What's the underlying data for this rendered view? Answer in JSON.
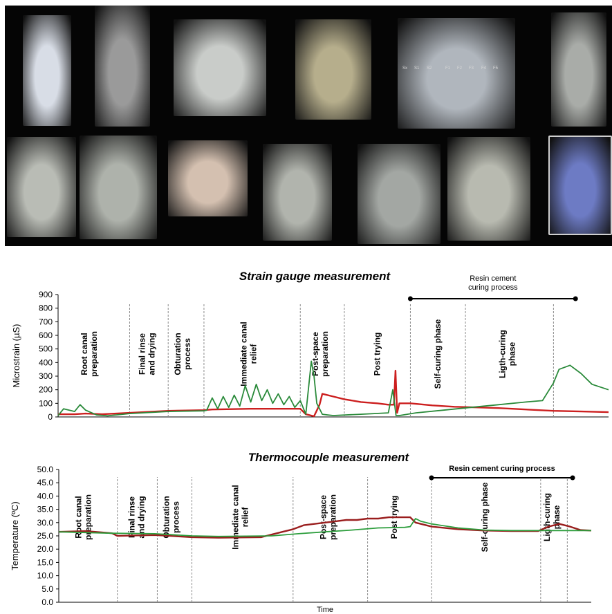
{
  "figure": {
    "photos": [
      {
        "name": "photo-root-specimen-block",
        "color": "#d8dde6"
      },
      {
        "name": "photo-strain-gauge-sensor",
        "color": "#9a9a9a"
      },
      {
        "name": "photo-gauge-wire-connection",
        "color": "#c9ccc9"
      },
      {
        "name": "photo-gauge-bonding",
        "color": "#b6ae8c"
      },
      {
        "name": "photo-rotary-endodontic-files",
        "color": "#b0b6bd"
      },
      {
        "name": "photo-handpiece-on-specimen",
        "color": "#a9aca8"
      },
      {
        "name": "photo-paper-points",
        "color": "#b9bcb5"
      },
      {
        "name": "photo-gutta-percha-cones",
        "color": "#aeb2ab"
      },
      {
        "name": "photo-flame-heating",
        "color": "#d4c0b0"
      },
      {
        "name": "photo-canal-relief",
        "color": "#b1b4ad"
      },
      {
        "name": "photo-post-space-drill",
        "color": "#a3a7a3"
      },
      {
        "name": "photo-post-trying",
        "color": "#b8bab0"
      },
      {
        "name": "photo-light-curing-unit",
        "color": "#6d7bc4"
      }
    ],
    "file_labels": [
      "Sx",
      "S1",
      "S2",
      "F1",
      "F2",
      "F3",
      "F4",
      "F5"
    ]
  },
  "chart_data": [
    {
      "type": "line",
      "title": "Strain gauge measurement",
      "xlabel": "",
      "ylabel": "Microstrain (µS)",
      "ylim": [
        0,
        900
      ],
      "y_ticks": [
        "0",
        "100",
        "200",
        "300",
        "400",
        "500",
        "600",
        "700",
        "800",
        "900"
      ],
      "x_range": [
        0,
        100
      ],
      "phase_boundaries": [
        13,
        20,
        26.5,
        44,
        52,
        64,
        74,
        90
      ],
      "phases": [
        {
          "label": "Root canal preparation",
          "x": 6
        },
        {
          "label": "Final rinse and drying",
          "x": 16.5
        },
        {
          "label": "Obturation process",
          "x": 23
        },
        {
          "label": "Immediate canal relief",
          "x": 35
        },
        {
          "label": "Post-space preparation",
          "x": 48
        },
        {
          "label": "Post trying",
          "x": 58
        },
        {
          "label": "Self-curing phase",
          "x": 69
        },
        {
          "label": "Ligth-curing phase",
          "x": 82
        }
      ],
      "bracket": {
        "label": "Resin cement curing process",
        "x_start": 64,
        "x_end": 94
      },
      "series": [
        {
          "color": "#cc1f1f",
          "x": [
            0,
            3,
            5,
            8,
            13,
            20,
            26.5,
            28,
            35,
            44,
            45,
            46.5,
            47.5,
            48,
            50,
            52,
            55,
            58,
            60,
            61,
            61.3,
            61.6,
            62,
            64,
            68,
            72,
            76,
            80,
            85,
            90,
            95,
            100
          ],
          "y": [
            20,
            20,
            25,
            20,
            30,
            45,
            50,
            55,
            60,
            60,
            20,
            5,
            90,
            170,
            150,
            130,
            110,
            100,
            90,
            90,
            340,
            30,
            100,
            100,
            85,
            75,
            70,
            65,
            55,
            45,
            40,
            35
          ]
        },
        {
          "color": "#2a8a3a",
          "x": [
            0,
            1,
            3,
            4,
            5,
            7,
            9,
            13,
            20,
            26.5,
            27,
            28,
            29,
            30,
            31,
            32,
            33,
            34,
            35,
            36,
            37,
            38,
            39,
            40,
            41,
            42,
            43,
            44,
            45,
            46,
            46.5,
            47,
            48,
            49,
            50,
            55,
            60,
            60.8,
            61.4,
            62,
            65,
            70,
            75,
            80,
            85,
            88,
            90,
            91,
            93,
            95,
            97,
            100
          ],
          "y": [
            10,
            60,
            40,
            90,
            50,
            15,
            8,
            25,
            40,
            45,
            50,
            140,
            60,
            150,
            70,
            160,
            80,
            230,
            110,
            240,
            120,
            200,
            100,
            170,
            90,
            150,
            70,
            120,
            20,
            410,
            300,
            100,
            20,
            15,
            10,
            20,
            30,
            200,
            10,
            10,
            30,
            50,
            70,
            90,
            110,
            120,
            250,
            350,
            380,
            320,
            240,
            200
          ]
        }
      ]
    },
    {
      "type": "line",
      "title": "Thermocouple measurement",
      "xlabel": "Time",
      "ylabel": "Temperature (ºC)",
      "ylim": [
        0,
        50
      ],
      "y_ticks": [
        "0.0",
        "5.0",
        "10.0",
        "15.0",
        "20.0",
        "25.0",
        "30.0",
        "35.0",
        "40.0",
        "45.0",
        "50.0"
      ],
      "x_range": [
        0,
        100
      ],
      "phase_boundaries": [
        11,
        18.5,
        25,
        44,
        58,
        70,
        90.5,
        95.5
      ],
      "phases": [
        {
          "label": "Root canal preparation",
          "x": 5
        },
        {
          "label": "Final rinse and drying",
          "x": 15
        },
        {
          "label": "Obturation process",
          "x": 21.5
        },
        {
          "label": "Immediate canal relief",
          "x": 34.5
        },
        {
          "label": "Post-space preparation",
          "x": 51
        },
        {
          "label": "Post trying",
          "x": 63
        },
        {
          "label": "Self-curing phase",
          "x": 80
        },
        {
          "label": "Ligth-curing phase",
          "x": 93
        }
      ],
      "bracket": {
        "label": "Resin cement curing process",
        "x_start": 70,
        "x_end": 96.5
      },
      "series": [
        {
          "color": "#9a1e1e",
          "x": [
            0,
            5,
            10,
            11,
            18,
            25,
            30,
            38,
            40,
            42,
            44,
            46,
            48,
            50,
            52,
            54,
            56,
            58,
            60,
            62,
            64,
            66,
            67,
            68,
            70,
            75,
            80,
            85,
            90,
            92,
            94,
            96,
            98,
            100
          ],
          "y": [
            26.5,
            26.8,
            26,
            25,
            25.3,
            24.5,
            24.3,
            24.5,
            25.5,
            26.5,
            27.5,
            29,
            29.5,
            30,
            30.5,
            31,
            31,
            31.5,
            31.5,
            32,
            32,
            32,
            30,
            29.5,
            28.5,
            27.5,
            27,
            26.8,
            26.8,
            28.5,
            29.5,
            28.5,
            27.2,
            27
          ]
        },
        {
          "color": "#2d9e3d",
          "x": [
            0,
            10,
            18,
            25,
            30,
            40,
            45,
            50,
            55,
            60,
            65,
            66,
            67,
            68,
            70,
            75,
            80,
            85,
            90,
            95,
            100
          ],
          "y": [
            26.5,
            26,
            25.8,
            25,
            24.8,
            25,
            25.8,
            26.5,
            27.2,
            28,
            28.2,
            28.5,
            31.5,
            30.5,
            29.5,
            28,
            27.2,
            27,
            27,
            27,
            27
          ]
        }
      ]
    }
  ]
}
